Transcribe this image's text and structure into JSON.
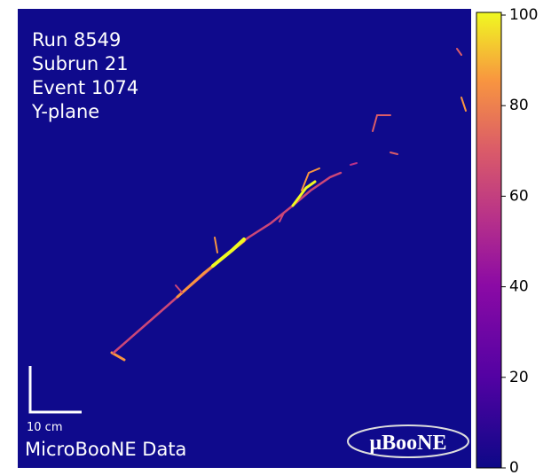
{
  "overlay": {
    "run": "Run 8549",
    "subrun": "Subrun 21",
    "event": "Event 1074",
    "plane": "Y-plane",
    "scale": "10 cm",
    "caption": "MicroBooNE Data",
    "logo": "μBooNE"
  },
  "colorbar": {
    "lim": [
      0,
      100
    ],
    "ticks": [
      0,
      20,
      40,
      60,
      80,
      100
    ]
  }
}
